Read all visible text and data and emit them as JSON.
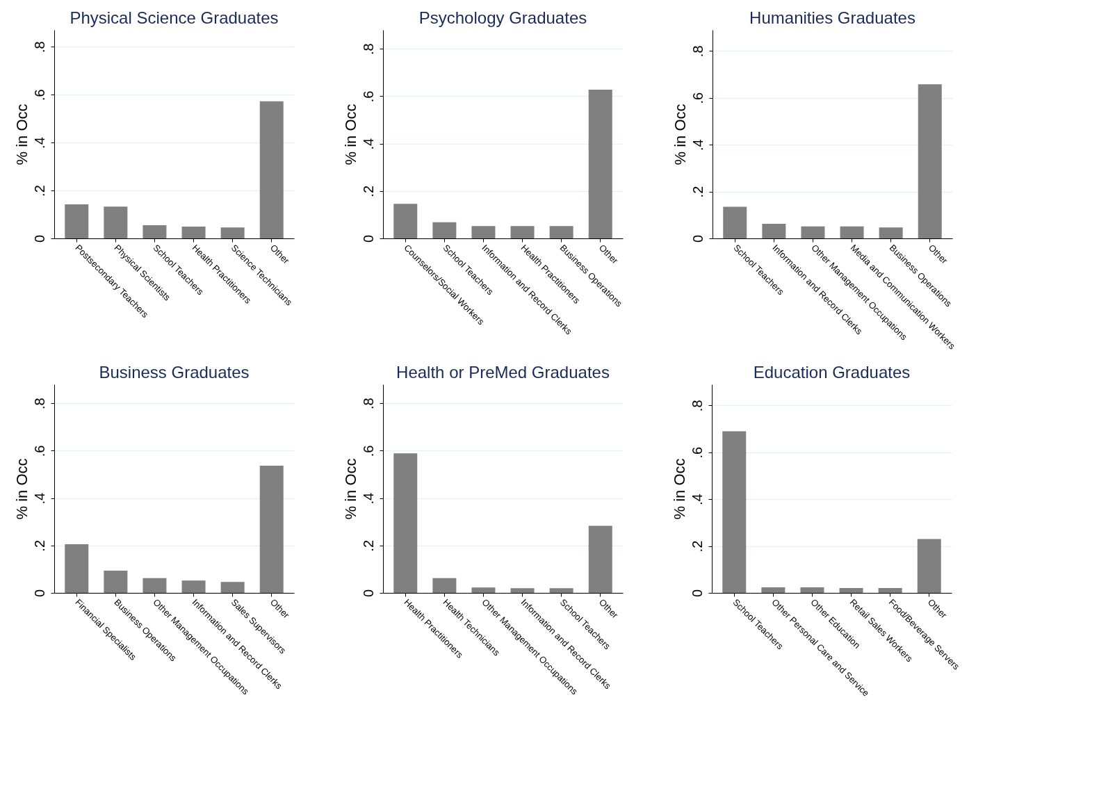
{
  "chart_data": [
    {
      "type": "bar",
      "title": "Physical Science Graduates",
      "ylabel": "% in Occ",
      "categories": [
        "Postsecondary Teachers",
        "Physical Scientists",
        "School Teachers",
        "Health Practitioners",
        "Science Technicians",
        "Other"
      ],
      "values": [
        0.142,
        0.133,
        0.055,
        0.049,
        0.046,
        0.572
      ],
      "color": "#808080",
      "ylim": [
        0,
        0.87
      ],
      "yticks": [
        0,
        {
          "value": 0.2,
          "label": ".2"
        },
        {
          "value": 0.4,
          "label": ".4"
        },
        {
          "value": 0.6,
          "label": ".6"
        },
        {
          "value": 0.8,
          "label": ".8"
        }
      ],
      "grid": "y"
    },
    {
      "type": "bar",
      "title": "Psychology Graduates",
      "ylabel": "% in Occ",
      "categories": [
        "Counselors/Social Workers",
        "School Teachers",
        "Information and Record Clerks",
        "Health Practitioners",
        "Business Operations",
        "Other"
      ],
      "values": [
        0.146,
        0.068,
        0.052,
        0.052,
        0.052,
        0.628
      ],
      "color": "#808080",
      "ylim": [
        0,
        0.88
      ],
      "yticks": [
        0,
        {
          "value": 0.2,
          "label": ".2"
        },
        {
          "value": 0.4,
          "label": ".4"
        },
        {
          "value": 0.6,
          "label": ".6"
        },
        {
          "value": 0.8,
          "label": ".8"
        }
      ],
      "grid": "y"
    },
    {
      "type": "bar",
      "title": "Humanities Graduates",
      "ylabel": "% in Occ",
      "categories": [
        "School Teachers",
        "Information and Record Clerks",
        "Other Management Occupations",
        "Media and Communication Workers",
        "Business Operations",
        "Other"
      ],
      "values": [
        0.135,
        0.062,
        0.051,
        0.051,
        0.047,
        0.658
      ],
      "color": "#808080",
      "ylim": [
        0,
        0.89
      ],
      "yticks": [
        0,
        {
          "value": 0.2,
          "label": ".2"
        },
        {
          "value": 0.4,
          "label": ".4"
        },
        {
          "value": 0.6,
          "label": ".6"
        },
        {
          "value": 0.8,
          "label": ".8"
        }
      ],
      "grid": "y"
    },
    {
      "type": "bar",
      "title": "Business Graduates",
      "ylabel": "% in Occ",
      "categories": [
        "Financial Specialists",
        "Business Operations",
        "Other Management Occupations",
        "Information and Record Clerks",
        "Sales Supervisors",
        "Other"
      ],
      "values": [
        0.205,
        0.094,
        0.062,
        0.052,
        0.046,
        0.537
      ],
      "color": "#808080",
      "ylim": [
        0,
        0.88
      ],
      "yticks": [
        0,
        {
          "value": 0.2,
          "label": ".2"
        },
        {
          "value": 0.4,
          "label": ".4"
        },
        {
          "value": 0.6,
          "label": ".6"
        },
        {
          "value": 0.8,
          "label": ".8"
        }
      ],
      "grid": "y"
    },
    {
      "type": "bar",
      "title": "Health or PreMed Graduates",
      "ylabel": "% in Occ",
      "categories": [
        "Health Practitioners",
        "Health Technicians",
        "Other Management Occupations",
        "Information and Record Clerks",
        "School Teachers",
        "Other"
      ],
      "values": [
        0.589,
        0.062,
        0.023,
        0.02,
        0.02,
        0.283
      ],
      "color": "#808080",
      "ylim": [
        0,
        0.88
      ],
      "yticks": [
        0,
        {
          "value": 0.2,
          "label": ".2"
        },
        {
          "value": 0.4,
          "label": ".4"
        },
        {
          "value": 0.6,
          "label": ".6"
        },
        {
          "value": 0.8,
          "label": ".8"
        }
      ],
      "grid": "y"
    },
    {
      "type": "bar",
      "title": "Education Graduates",
      "ylabel": "% in Occ",
      "categories": [
        "School Teachers",
        "Other Personal Care and Service",
        "Other Education",
        "Retail Sales Workers",
        "Food/Beverage Servers",
        "Other"
      ],
      "values": [
        0.69,
        0.024,
        0.024,
        0.021,
        0.021,
        0.23
      ],
      "color": "#808080",
      "ylim": [
        0,
        0.89
      ],
      "yticks": [
        0,
        {
          "value": 0.2,
          "label": ".2"
        },
        {
          "value": 0.4,
          "label": ".4"
        },
        {
          "value": 0.6,
          "label": ".6"
        },
        {
          "value": 0.8,
          "label": ".8"
        }
      ],
      "grid": "y"
    }
  ]
}
